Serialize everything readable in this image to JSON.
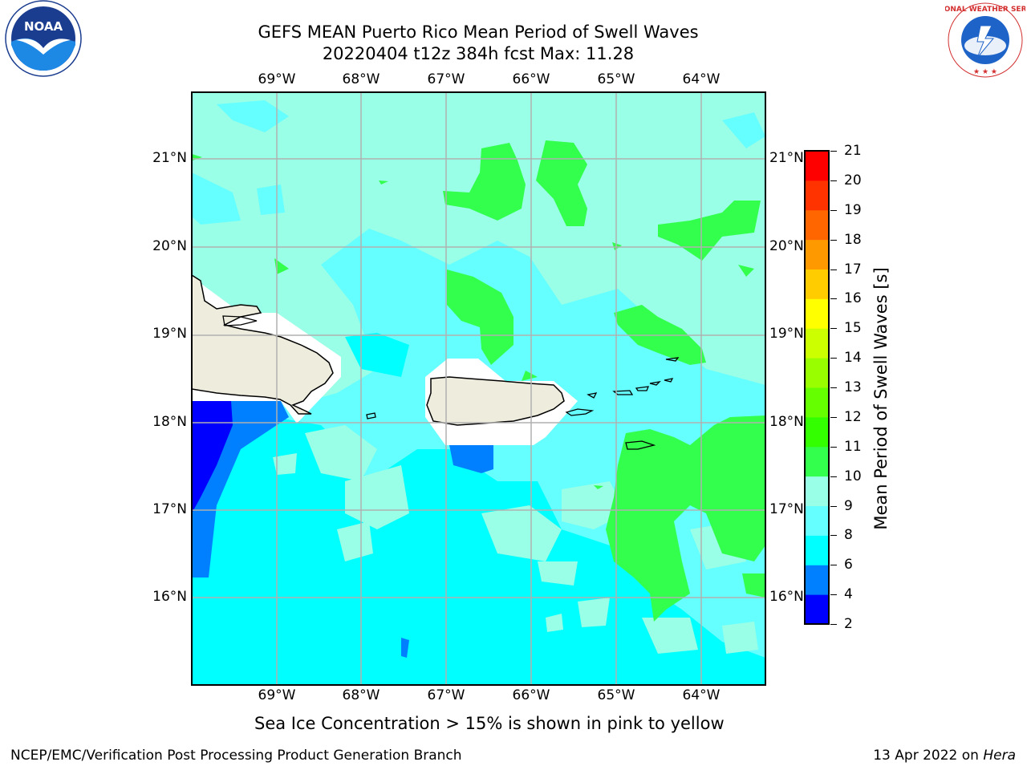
{
  "title_line1": "GEFS MEAN Puerto Rico Mean Period of Swell Waves",
  "title_line2": "20220404 t12z 384h fcst   Max: 11.28",
  "longitude_labels": [
    "69°W",
    "68°W",
    "67°W",
    "66°W",
    "65°W",
    "64°W"
  ],
  "latitude_labels": [
    "21°N",
    "20°N",
    "19°N",
    "18°N",
    "17°N",
    "16°N"
  ],
  "colorbar": {
    "label": "Mean Period of Swell Waves [s]",
    "ticks": [
      "21",
      "20",
      "19",
      "18",
      "17",
      "16",
      "15",
      "14",
      "13",
      "12",
      "11",
      "10",
      "9",
      "8",
      "6",
      "4",
      "2"
    ],
    "colors": [
      "#0000ff",
      "#0080ff",
      "#00ffff",
      "#66ffff",
      "#99ffe6",
      "#33ff4d",
      "#33ff00",
      "#66ff00",
      "#99ff00",
      "#ccff00",
      "#ffff00",
      "#ffcc00",
      "#ff9900",
      "#ff6600",
      "#ff3300",
      "#ff0000"
    ]
  },
  "colors": {
    "land": "#eeecdc",
    "background_sea": "#99ffe6",
    "grid": "#b0b0b0"
  },
  "sea_ice_note": "Sea Ice Concentration > 15% is shown in pink to yellow",
  "footer_left": "NCEP/EMC/Verification Post Processing Product Generation Branch",
  "footer_right_date": "13 Apr 2022 on ",
  "footer_right_machine": "Hera",
  "logos": {
    "noaa_text": "NOAA",
    "nws_text": "NATIONAL WEATHER SERVICE"
  }
}
